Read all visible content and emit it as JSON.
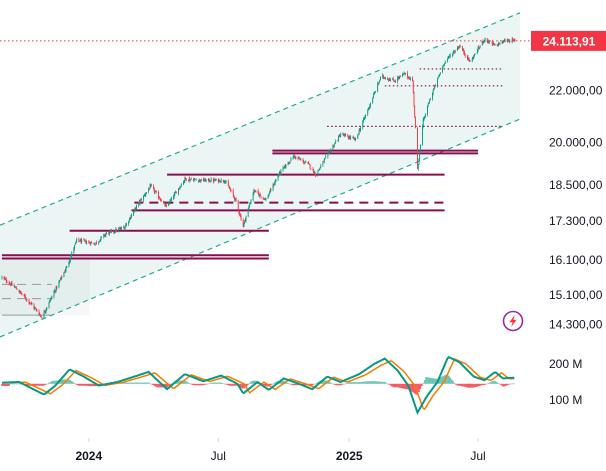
{
  "chart_data": {
    "type": "candlestick",
    "x_range": [
      "2023-09-01",
      "2025-08-22"
    ],
    "price_axis": {
      "scale": "log",
      "range": [
        13900,
        26000
      ],
      "ticks": [
        "24.113,91",
        "22.000,00",
        "20.000,00",
        "18.500,00",
        "17.300,00",
        "16.100,00",
        "15.100,00",
        "14.300,00"
      ],
      "tick_values": [
        22000,
        20000,
        18500,
        17300,
        16100,
        15100,
        14300
      ]
    },
    "last_price": {
      "label": "24.113,91",
      "value": 24113.91,
      "color": "#f23645"
    },
    "x_ticks": [
      {
        "label": "2024",
        "date": "2024-01-01",
        "bold": true
      },
      {
        "label": "Jul",
        "date": "2024-07-01",
        "bold": false
      },
      {
        "label": "2025",
        "date": "2025-01-01",
        "bold": true
      },
      {
        "label": "Jul",
        "date": "2025-07-01",
        "bold": false
      }
    ],
    "colors": {
      "up": "#089981",
      "down": "#f23645",
      "channel_line": "#22ab94",
      "channel_fill": "#e8f5f2",
      "level": "#880e4f"
    },
    "price_path": [
      [
        "2023-09-01",
        15600
      ],
      [
        "2023-09-20",
        15300
      ],
      [
        "2023-10-10",
        14900
      ],
      [
        "2023-10-27",
        14500
      ],
      [
        "2023-11-15",
        15250
      ],
      [
        "2023-12-01",
        15900
      ],
      [
        "2023-12-15",
        16700
      ],
      [
        "2024-01-10",
        16600
      ],
      [
        "2024-01-25",
        16900
      ],
      [
        "2024-02-20",
        17100
      ],
      [
        "2024-03-10",
        17850
      ],
      [
        "2024-03-28",
        18450
      ],
      [
        "2024-04-19",
        17750
      ],
      [
        "2024-05-15",
        18700
      ],
      [
        "2024-06-10",
        18650
      ],
      [
        "2024-07-10",
        18650
      ],
      [
        "2024-07-25",
        18000
      ],
      [
        "2024-08-05",
        17150
      ],
      [
        "2024-08-20",
        18300
      ],
      [
        "2024-09-06",
        18000
      ],
      [
        "2024-09-25",
        18900
      ],
      [
        "2024-10-15",
        19500
      ],
      [
        "2024-11-05",
        19200
      ],
      [
        "2024-11-15",
        18850
      ],
      [
        "2024-12-05",
        19700
      ],
      [
        "2024-12-20",
        20300
      ],
      [
        "2025-01-10",
        20100
      ],
      [
        "2025-01-31",
        21500
      ],
      [
        "2025-02-15",
        22600
      ],
      [
        "2025-03-05",
        22400
      ],
      [
        "2025-03-20",
        22700
      ],
      [
        "2025-03-31",
        22400
      ],
      [
        "2025-04-03",
        21000
      ],
      [
        "2025-04-07",
        19000
      ],
      [
        "2025-04-15",
        20800
      ],
      [
        "2025-04-25",
        21700
      ],
      [
        "2025-05-15",
        23200
      ],
      [
        "2025-06-05",
        23900
      ],
      [
        "2025-06-20",
        23200
      ],
      [
        "2025-07-10",
        24200
      ],
      [
        "2025-07-25",
        23900
      ],
      [
        "2025-08-10",
        24150
      ],
      [
        "2025-08-22",
        24114
      ]
    ],
    "channel": {
      "upper": [
        [
          "2023-09-01",
          17200
        ],
        [
          "2025-08-22",
          25300
        ]
      ],
      "lower": [
        [
          "2023-09-01",
          14000
        ],
        [
          "2025-08-22",
          20800
        ]
      ]
    },
    "levels": [
      {
        "value": 24113.91,
        "from": "2023-09-01",
        "to": "2025-08-22",
        "style": "dotted",
        "color": "#f23645"
      },
      {
        "value": 22900,
        "from": "2025-04-10",
        "to": "2025-08-05",
        "style": "dotted",
        "color": "#880e4f"
      },
      {
        "value": 22200,
        "from": "2025-02-20",
        "to": "2025-08-05",
        "style": "dotted",
        "color": "#880e4f"
      },
      {
        "value": 20600,
        "from": "2024-12-01",
        "to": "2025-08-05",
        "style": "dotted",
        "color": "#880e4f"
      },
      {
        "value": 19700,
        "from": "2024-09-15",
        "to": "2025-07-01",
        "style": "solid",
        "color": "#880e4f"
      },
      {
        "value": 19600,
        "from": "2024-09-15",
        "to": "2025-07-01",
        "style": "solid",
        "color": "#880e4f"
      },
      {
        "value": 18850,
        "from": "2024-04-20",
        "to": "2025-05-15",
        "style": "solid",
        "color": "#880e4f"
      },
      {
        "value": 17900,
        "from": "2024-03-05",
        "to": "2025-05-15",
        "style": "dashed",
        "color": "#880e4f"
      },
      {
        "value": 17650,
        "from": "2024-03-01",
        "to": "2025-05-15",
        "style": "solid",
        "color": "#880e4f"
      },
      {
        "value": 17000,
        "from": "2023-12-05",
        "to": "2024-09-10",
        "style": "solid",
        "color": "#880e4f"
      },
      {
        "value": 16250,
        "from": "2023-09-01",
        "to": "2024-09-10",
        "style": "solid",
        "color": "#880e4f"
      },
      {
        "value": 16150,
        "from": "2023-09-01",
        "to": "2024-09-10",
        "style": "solid",
        "color": "#880e4f"
      },
      {
        "value": 15400,
        "from": "2023-09-01",
        "to": "2023-11-10",
        "style": "dashed",
        "color": "#9598a1"
      },
      {
        "value": 15000,
        "from": "2023-09-01",
        "to": "2023-11-10",
        "style": "dashed",
        "color": "#9598a1"
      },
      {
        "value": 14550,
        "from": "2023-09-01",
        "to": "2023-11-10",
        "style": "solid",
        "color": "#9598a1"
      }
    ],
    "oscillator": {
      "ticks": [
        "200 M",
        "100 M"
      ],
      "tick_values": [
        200,
        100
      ],
      "zero": 145,
      "range": [
        0,
        250
      ],
      "colors": {
        "fast": "#089981",
        "slow": "#f57c00",
        "hist_up": "#089981",
        "hist_down": "#f23645"
      },
      "path": [
        [
          "2023-09-01",
          148
        ],
        [
          "2023-09-25",
          150
        ],
        [
          "2023-10-15",
          130
        ],
        [
          "2023-10-30",
          115
        ],
        [
          "2023-11-15",
          140
        ],
        [
          "2023-12-05",
          185
        ],
        [
          "2023-12-25",
          165
        ],
        [
          "2024-01-15",
          140
        ],
        [
          "2024-02-10",
          150
        ],
        [
          "2024-03-05",
          165
        ],
        [
          "2024-03-25",
          178
        ],
        [
          "2024-04-20",
          130
        ],
        [
          "2024-05-15",
          172
        ],
        [
          "2024-06-10",
          152
        ],
        [
          "2024-07-05",
          168
        ],
        [
          "2024-07-28",
          145
        ],
        [
          "2024-08-05",
          118
        ],
        [
          "2024-08-25",
          150
        ],
        [
          "2024-09-10",
          128
        ],
        [
          "2024-10-01",
          160
        ],
        [
          "2024-10-25",
          143
        ],
        [
          "2024-11-10",
          130
        ],
        [
          "2024-12-01",
          165
        ],
        [
          "2024-12-20",
          150
        ],
        [
          "2025-01-15",
          172
        ],
        [
          "2025-02-05",
          200
        ],
        [
          "2025-02-20",
          215
        ],
        [
          "2025-03-10",
          182
        ],
        [
          "2025-03-25",
          140
        ],
        [
          "2025-04-07",
          65
        ],
        [
          "2025-04-20",
          110
        ],
        [
          "2025-05-05",
          150
        ],
        [
          "2025-05-20",
          220
        ],
        [
          "2025-06-05",
          205
        ],
        [
          "2025-06-25",
          165
        ],
        [
          "2025-07-10",
          155
        ],
        [
          "2025-07-25",
          178
        ],
        [
          "2025-08-05",
          160
        ],
        [
          "2025-08-22",
          162
        ]
      ]
    }
  },
  "badge": {
    "icon": "bolt-icon",
    "color": "#9c27b0"
  }
}
